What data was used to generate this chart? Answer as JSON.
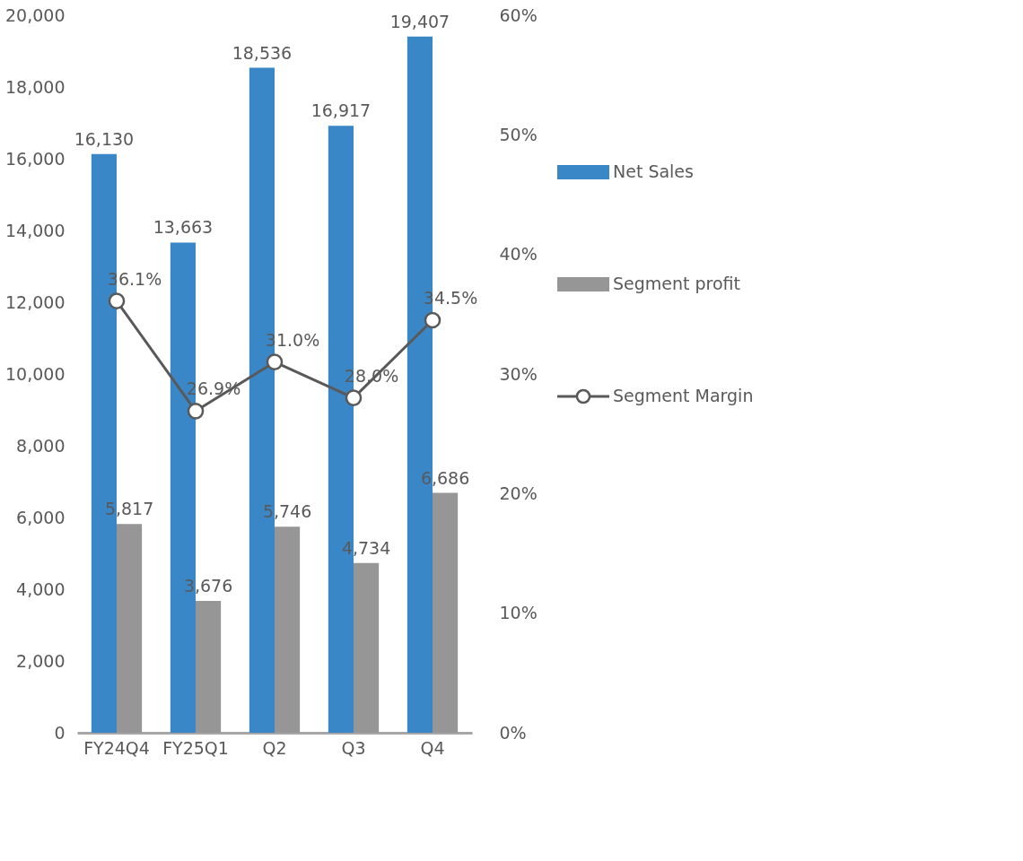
{
  "chart_data": {
    "type": "bar",
    "categories": [
      "FY24Q4",
      "FY25Q1",
      "Q2",
      "Q3",
      "Q4"
    ],
    "series": [
      {
        "name": "Net Sales",
        "type": "bar",
        "color": "#3a87c8",
        "values": [
          16130,
          13663,
          18536,
          16917,
          19407
        ],
        "value_labels": [
          "16,130",
          "13,663",
          "18,536",
          "16,917",
          "19,407"
        ]
      },
      {
        "name": "Segment profit",
        "type": "bar",
        "color": "#969696",
        "values": [
          5817,
          3676,
          5746,
          4734,
          6686
        ],
        "value_labels": [
          "5,817",
          "3,676",
          "5,746",
          "4,734",
          "6,686"
        ]
      },
      {
        "name": "Segment Margin",
        "type": "line",
        "axis": "y2",
        "color": "#595959",
        "marker": "circle",
        "values": [
          36.1,
          26.9,
          31.0,
          28.0,
          34.5
        ],
        "value_labels": [
          "36.1%",
          "26.9%",
          "31.0%",
          "28.0%",
          "34.5%"
        ]
      }
    ],
    "ylim": [
      0,
      20000
    ],
    "yticks": [
      {
        "value": 0,
        "label": "0"
      },
      {
        "value": 2000,
        "label": "2,000"
      },
      {
        "value": 4000,
        "label": "4,000"
      },
      {
        "value": 6000,
        "label": "6,000"
      },
      {
        "value": 8000,
        "label": "8,000"
      },
      {
        "value": 10000,
        "label": "10,000"
      },
      {
        "value": 12000,
        "label": "12,000"
      },
      {
        "value": 14000,
        "label": "14,000"
      },
      {
        "value": 16000,
        "label": "16,000"
      },
      {
        "value": 18000,
        "label": "18,000"
      },
      {
        "value": 20000,
        "label": "20,000"
      }
    ],
    "y2lim": [
      0,
      60
    ],
    "y2ticks": [
      {
        "value": 0,
        "label": "0%"
      },
      {
        "value": 10,
        "label": "10%"
      },
      {
        "value": 20,
        "label": "20%"
      },
      {
        "value": 30,
        "label": "30%"
      },
      {
        "value": 40,
        "label": "40%"
      },
      {
        "value": 50,
        "label": "50%"
      },
      {
        "value": 60,
        "label": "60%"
      }
    ],
    "grid": false,
    "legend": "right"
  }
}
